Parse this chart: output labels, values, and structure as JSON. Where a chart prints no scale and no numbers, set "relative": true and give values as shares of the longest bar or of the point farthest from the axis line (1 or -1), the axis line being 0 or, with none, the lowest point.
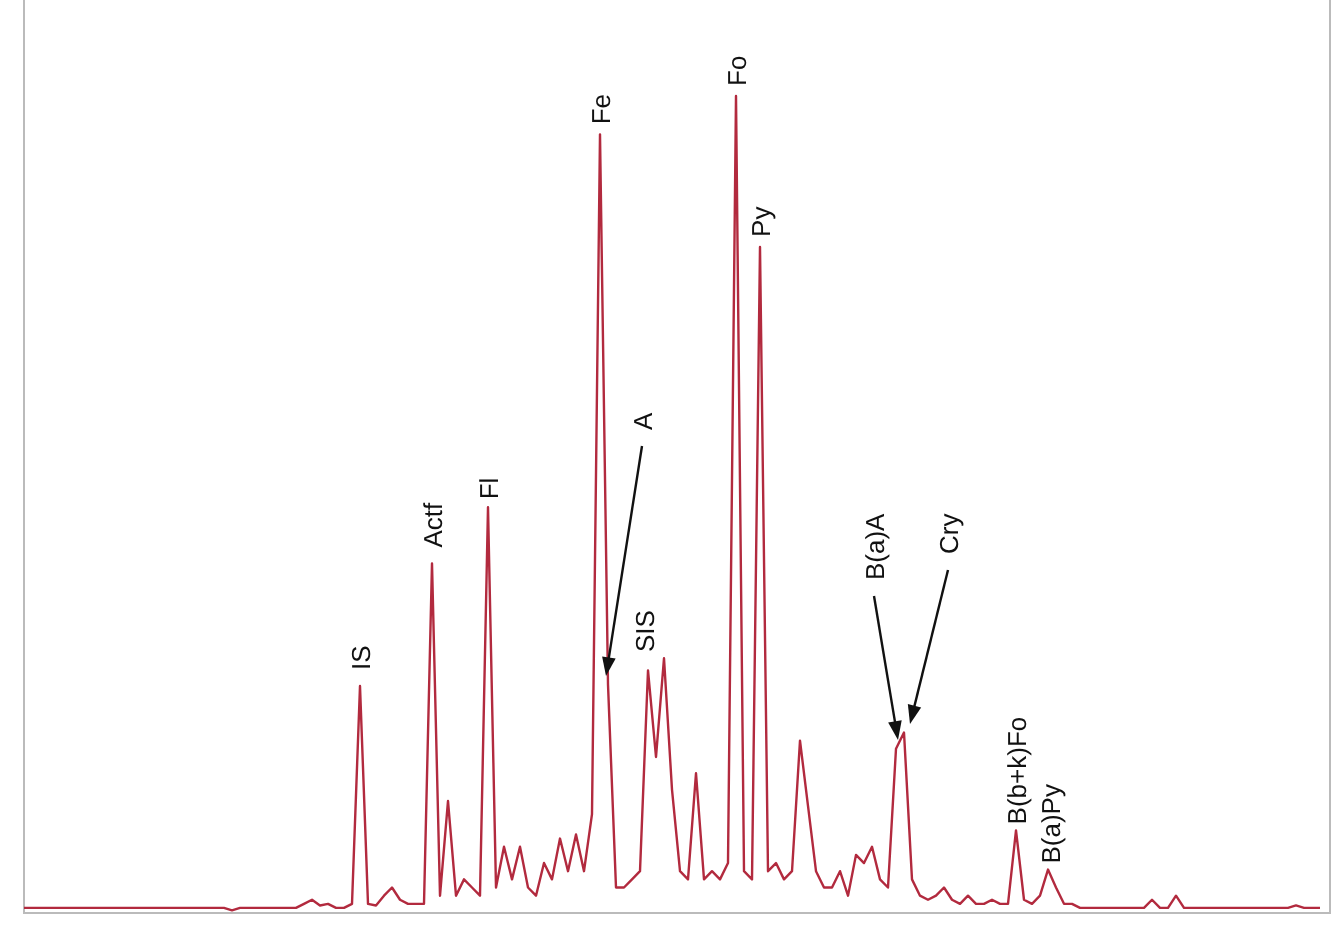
{
  "chart_data": {
    "type": "line",
    "relative": true,
    "color": "#b22a3e",
    "line_style": "solid",
    "marker": "none",
    "categories": [
      null,
      null,
      null,
      null,
      null,
      null,
      null,
      null,
      null,
      null,
      null,
      null,
      null,
      null,
      null,
      null,
      null,
      null,
      null,
      null,
      null,
      null,
      null,
      null,
      null,
      null,
      null,
      null,
      null,
      null,
      null,
      null,
      null,
      null,
      null,
      null,
      null,
      null,
      null,
      null,
      null,
      null,
      null,
      null,
      null,
      null,
      null,
      null,
      null,
      null,
      null,
      null,
      null,
      null,
      null,
      null,
      null,
      null,
      null,
      null,
      null,
      null,
      null,
      null,
      null,
      null,
      null,
      null,
      null,
      null,
      null,
      null,
      null,
      null,
      null,
      null,
      null,
      null,
      null,
      null,
      null,
      null,
      null,
      null,
      null,
      null,
      null,
      null,
      null,
      null,
      null,
      null,
      null,
      null,
      null,
      null,
      null,
      null,
      null,
      null,
      null,
      null,
      null,
      null,
      null,
      null,
      null,
      null,
      null,
      null,
      null,
      null,
      null,
      null,
      null,
      null,
      null,
      null,
      null,
      null,
      null,
      null,
      null,
      null,
      null,
      null,
      null,
      null,
      null,
      null,
      null,
      null,
      null,
      null,
      null,
      null,
      null,
      null,
      null,
      null,
      null,
      null,
      null,
      null,
      null,
      null,
      null,
      null,
      null,
      null,
      null,
      null,
      null,
      null,
      null,
      null,
      null,
      null,
      null,
      null,
      null,
      null,
      null
    ],
    "values": [
      0.005,
      0.005,
      0.005,
      0.005,
      0.005,
      0.005,
      0.005,
      0.005,
      0.005,
      0.005,
      0.005,
      0.005,
      0.005,
      0.005,
      0.005,
      0.005,
      0.005,
      0.005,
      0.005,
      0.005,
      0.005,
      0.005,
      0.005,
      0.005,
      0.005,
      0.005,
      0.002,
      0.005,
      0.005,
      0.005,
      0.005,
      0.005,
      0.005,
      0.005,
      0.005,
      0.01,
      0.015,
      0.008,
      0.01,
      0.005,
      0.005,
      0.01,
      0.277,
      0.01,
      0.008,
      0.02,
      0.03,
      0.015,
      0.01,
      0.01,
      0.01,
      0.427,
      0.02,
      0.136,
      0.02,
      0.04,
      0.03,
      0.02,
      0.496,
      0.03,
      0.08,
      0.04,
      0.08,
      0.03,
      0.02,
      0.06,
      0.04,
      0.09,
      0.05,
      0.095,
      0.05,
      0.12,
      0.953,
      0.279,
      0.03,
      0.03,
      0.04,
      0.05,
      0.296,
      0.19,
      0.311,
      0.15,
      0.05,
      0.04,
      0.17,
      0.04,
      0.05,
      0.04,
      0.06,
      1,
      0.05,
      0.04,
      0.815,
      0.05,
      0.06,
      0.04,
      0.05,
      0.21,
      0.13,
      0.05,
      0.03,
      0.03,
      0.05,
      0.02,
      0.07,
      0.06,
      0.08,
      0.04,
      0.03,
      0.2,
      0.22,
      0.04,
      0.02,
      0.015,
      0.02,
      0.03,
      0.015,
      0.01,
      0.02,
      0.01,
      0.01,
      0.015,
      0.01,
      0.01,
      0.1,
      0.015,
      0.01,
      0.02,
      0.052,
      0.03,
      0.01,
      0.01,
      0.005,
      0.005,
      0.005,
      0.005,
      0.005,
      0.005,
      0.005,
      0.005,
      0.005,
      0.015,
      0.005,
      0.005,
      0.02,
      0.005,
      0.005,
      0.005,
      0.005,
      0.005,
      0.005,
      0.005,
      0.005,
      0.005,
      0.005,
      0.005,
      0.005,
      0.005,
      0.005,
      0.008,
      0.005,
      0.005,
      0.005
    ],
    "annotations": [
      {
        "text": "IS",
        "y": 0.277
      },
      {
        "text": "Actf",
        "y": 0.427
      },
      {
        "text": "Fl",
        "y": 0.496
      },
      {
        "text": "Fe",
        "y": 0.953
      },
      "A",
      "SIS",
      {
        "text": "Fo",
        "y": 1
      },
      {
        "text": "Py",
        "y": 0.815
      },
      "B(a)A",
      "Cry",
      {
        "text": "B(b+k)Fo",
        "y": 0.1
      },
      {
        "text": "B(a)Py",
        "y": 0.052
      }
    ]
  }
}
